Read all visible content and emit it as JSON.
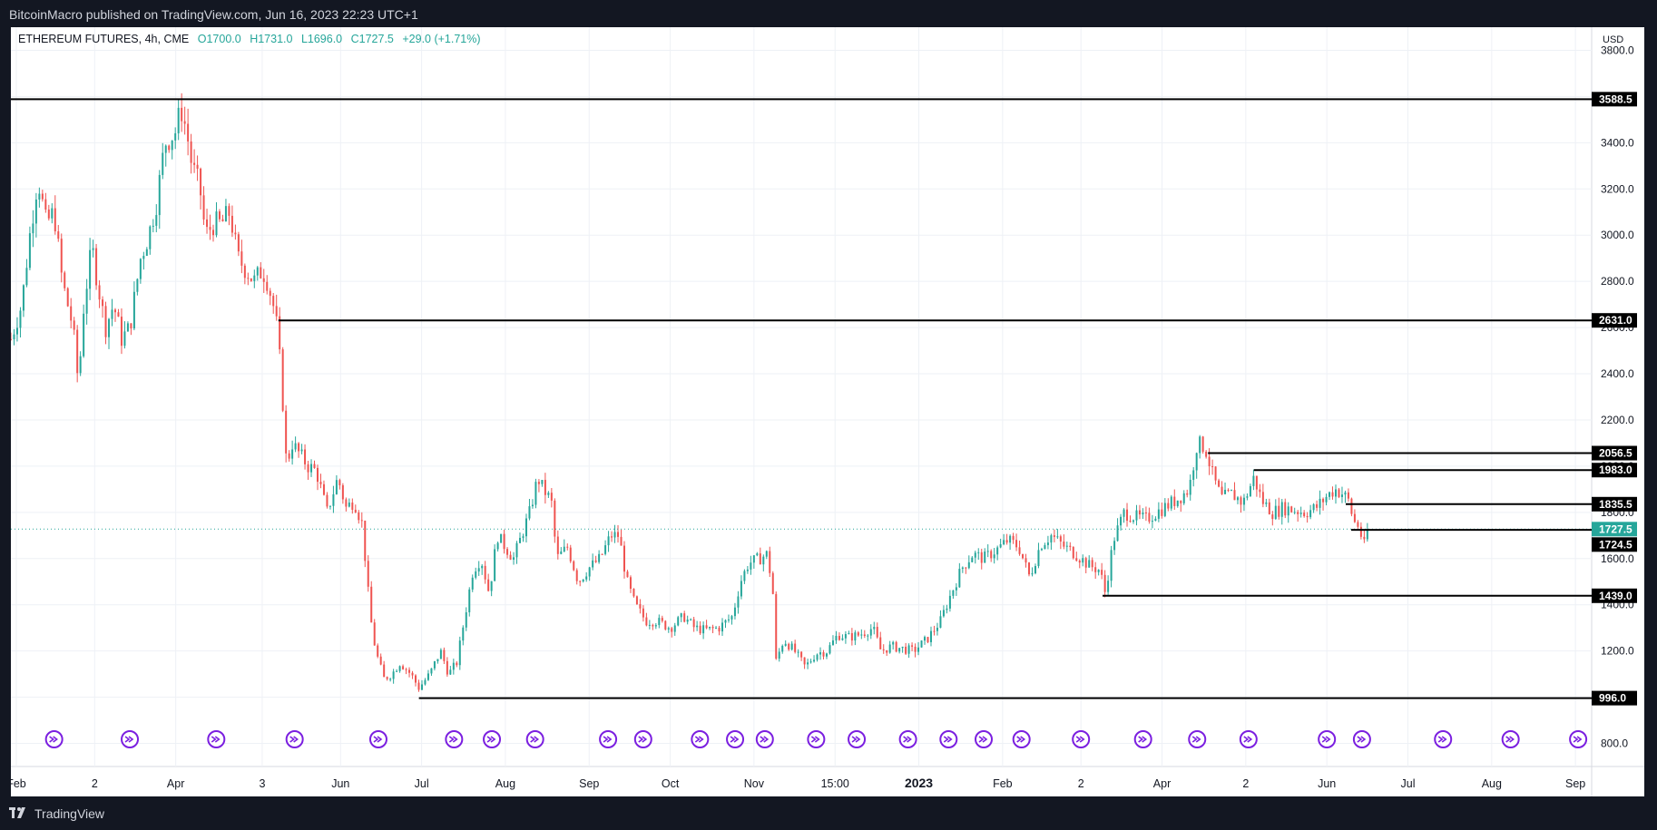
{
  "header": {
    "publisher_text": "BitcoinMacro published on TradingView.com, Jun 16, 2023 22:23 UTC+1"
  },
  "legend": {
    "symbol": "ETHEREUM FUTURES",
    "interval": "4h",
    "exchange": "CME",
    "open": "O1700.0",
    "high": "H1731.0",
    "low": "L1696.0",
    "close": "C1727.5",
    "change": "+29.0 (+1.71%)"
  },
  "footer": {
    "brand": "TradingView"
  },
  "colors": {
    "background": "#131722",
    "pane": "#ffffff",
    "grid": "#eef1f6",
    "up": "#26a69a",
    "down": "#ef5350",
    "level_line": "#000000",
    "last_price": "#26a69a",
    "event_icon": "#7b1fe0"
  },
  "chart_data": {
    "type": "candlestick",
    "title": "ETHEREUM FUTURES, 4h, CME",
    "currency_label": "USD",
    "ylim": [
      700,
      3900
    ],
    "y_ticks": [
      800,
      1000,
      1200,
      1400,
      1600,
      1800,
      2000,
      2200,
      2400,
      2600,
      2800,
      3000,
      3200,
      3400,
      3600,
      3800
    ],
    "y_tick_labels": [
      "800.0",
      "1000.0",
      "1200.0",
      "1400.0",
      "1600.0",
      "1800.0",
      "2000.0",
      "2200.0",
      "2400.0",
      "2600.0",
      "2800.0",
      "3000.0",
      "3200.0",
      "3400.0",
      "3600.0",
      "3800.0"
    ],
    "x_labels": [
      {
        "label": "Feb",
        "date": "2022-02-01"
      },
      {
        "label": "2",
        "date": "2022-03-02"
      },
      {
        "label": "Apr",
        "date": "2022-04-01"
      },
      {
        "label": "3",
        "date": "2022-05-03"
      },
      {
        "label": "Jun",
        "date": "2022-06-01"
      },
      {
        "label": "Jul",
        "date": "2022-07-01"
      },
      {
        "label": "Aug",
        "date": "2022-08-01"
      },
      {
        "label": "Sep",
        "date": "2022-09-01"
      },
      {
        "label": "Oct",
        "date": "2022-10-01"
      },
      {
        "label": "Nov",
        "date": "2022-11-01"
      },
      {
        "label": "15:00",
        "date": "2022-12-01"
      },
      {
        "label": "2023",
        "date": "2023-01-01"
      },
      {
        "label": "Feb",
        "date": "2023-02-01"
      },
      {
        "label": "2",
        "date": "2023-03-02"
      },
      {
        "label": "Apr",
        "date": "2023-04-01"
      },
      {
        "label": "2",
        "date": "2023-05-02"
      },
      {
        "label": "Jun",
        "date": "2023-06-01"
      },
      {
        "label": "Jul",
        "date": "2023-07-01"
      },
      {
        "label": "Aug",
        "date": "2023-08-01"
      },
      {
        "label": "Sep",
        "date": "2023-09-01"
      }
    ],
    "x_range": [
      "2022-01-30",
      "2023-09-07"
    ],
    "last_price": {
      "value": 1727.5,
      "label": "1727.5"
    },
    "horizontal_levels": [
      {
        "value": 3588.5,
        "label": "3588.5",
        "from_date": "2022-01-30"
      },
      {
        "value": 2631.0,
        "label": "2631.0",
        "from_date": "2022-05-09"
      },
      {
        "value": 2056.5,
        "label": "2056.5",
        "from_date": "2023-04-18"
      },
      {
        "value": 1983.0,
        "label": "1983.0",
        "from_date": "2023-05-05"
      },
      {
        "value": 1835.5,
        "label": "1835.5",
        "from_date": "2023-06-08"
      },
      {
        "value": 1724.5,
        "label": "1724.5",
        "from_date": "2023-06-10"
      },
      {
        "value": 1439.0,
        "label": "1439.0",
        "from_date": "2023-03-10"
      },
      {
        "value": 996.0,
        "label": "996.0",
        "from_date": "2022-06-30"
      }
    ],
    "price_path": [
      [
        "2022-01-30",
        2550
      ],
      [
        "2022-02-03",
        2700
      ],
      [
        "2022-02-06",
        3000
      ],
      [
        "2022-02-09",
        3250
      ],
      [
        "2022-02-12",
        3050
      ],
      [
        "2022-02-15",
        3100
      ],
      [
        "2022-02-18",
        2800
      ],
      [
        "2022-02-22",
        2600
      ],
      [
        "2022-02-24",
        2350
      ],
      [
        "2022-02-26",
        2700
      ],
      [
        "2022-03-01",
        2950
      ],
      [
        "2022-03-03",
        2800
      ],
      [
        "2022-03-06",
        2600
      ],
      [
        "2022-03-09",
        2700
      ],
      [
        "2022-03-12",
        2550
      ],
      [
        "2022-03-15",
        2600
      ],
      [
        "2022-03-19",
        2900
      ],
      [
        "2022-03-22",
        3000
      ],
      [
        "2022-03-25",
        3150
      ],
      [
        "2022-03-28",
        3400
      ],
      [
        "2022-04-01",
        3450
      ],
      [
        "2022-04-03",
        3550
      ],
      [
        "2022-04-05",
        3450
      ],
      [
        "2022-04-07",
        3300
      ],
      [
        "2022-04-10",
        3200
      ],
      [
        "2022-04-12",
        3000
      ],
      [
        "2022-04-15",
        3050
      ],
      [
        "2022-04-18",
        3050
      ],
      [
        "2022-04-21",
        3100
      ],
      [
        "2022-04-24",
        2900
      ],
      [
        "2022-04-27",
        2850
      ],
      [
        "2022-04-30",
        2800
      ],
      [
        "2022-05-03",
        2850
      ],
      [
        "2022-05-05",
        2800
      ],
      [
        "2022-05-08",
        2650
      ],
      [
        "2022-05-10",
        2400
      ],
      [
        "2022-05-12",
        2000
      ],
      [
        "2022-05-14",
        2100
      ],
      [
        "2022-05-17",
        2050
      ],
      [
        "2022-05-20",
        2000
      ],
      [
        "2022-05-23",
        1980
      ],
      [
        "2022-05-27",
        1800
      ],
      [
        "2022-05-31",
        1950
      ],
      [
        "2022-06-03",
        1820
      ],
      [
        "2022-06-06",
        1850
      ],
      [
        "2022-06-09",
        1750
      ],
      [
        "2022-06-12",
        1350
      ],
      [
        "2022-06-14",
        1200
      ],
      [
        "2022-06-17",
        1080
      ],
      [
        "2022-06-20",
        1100
      ],
      [
        "2022-06-23",
        1150
      ],
      [
        "2022-06-27",
        1100
      ],
      [
        "2022-06-30",
        1040
      ],
      [
        "2022-07-04",
        1100
      ],
      [
        "2022-07-08",
        1200
      ],
      [
        "2022-07-11",
        1100
      ],
      [
        "2022-07-14",
        1150
      ],
      [
        "2022-07-17",
        1350
      ],
      [
        "2022-07-20",
        1550
      ],
      [
        "2022-07-23",
        1600
      ],
      [
        "2022-07-26",
        1450
      ],
      [
        "2022-07-29",
        1700
      ],
      [
        "2022-08-01",
        1650
      ],
      [
        "2022-08-04",
        1600
      ],
      [
        "2022-08-07",
        1700
      ],
      [
        "2022-08-10",
        1800
      ],
      [
        "2022-08-13",
        1950
      ],
      [
        "2022-08-15",
        1900
      ],
      [
        "2022-08-18",
        1850
      ],
      [
        "2022-08-20",
        1600
      ],
      [
        "2022-08-24",
        1650
      ],
      [
        "2022-08-28",
        1500
      ],
      [
        "2022-09-01",
        1560
      ],
      [
        "2022-09-05",
        1600
      ],
      [
        "2022-09-09",
        1700
      ],
      [
        "2022-09-12",
        1700
      ],
      [
        "2022-09-15",
        1500
      ],
      [
        "2022-09-18",
        1400
      ],
      [
        "2022-09-22",
        1330
      ],
      [
        "2022-09-26",
        1330
      ],
      [
        "2022-10-01",
        1300
      ],
      [
        "2022-10-06",
        1350
      ],
      [
        "2022-10-10",
        1300
      ],
      [
        "2022-10-14",
        1290
      ],
      [
        "2022-10-19",
        1300
      ],
      [
        "2022-10-24",
        1350
      ],
      [
        "2022-10-27",
        1500
      ],
      [
        "2022-10-30",
        1580
      ],
      [
        "2022-11-03",
        1600
      ],
      [
        "2022-11-06",
        1620
      ],
      [
        "2022-11-08",
        1450
      ],
      [
        "2022-11-09",
        1150
      ],
      [
        "2022-11-12",
        1250
      ],
      [
        "2022-11-16",
        1200
      ],
      [
        "2022-11-20",
        1130
      ],
      [
        "2022-11-24",
        1190
      ],
      [
        "2022-11-28",
        1200
      ],
      [
        "2022-12-02",
        1270
      ],
      [
        "2022-12-06",
        1260
      ],
      [
        "2022-12-10",
        1270
      ],
      [
        "2022-12-15",
        1300
      ],
      [
        "2022-12-18",
        1200
      ],
      [
        "2022-12-22",
        1220
      ],
      [
        "2022-12-26",
        1210
      ],
      [
        "2022-12-30",
        1200
      ],
      [
        "2023-01-04",
        1250
      ],
      [
        "2023-01-09",
        1330
      ],
      [
        "2023-01-13",
        1450
      ],
      [
        "2023-01-17",
        1560
      ],
      [
        "2023-01-21",
        1620
      ],
      [
        "2023-01-25",
        1600
      ],
      [
        "2023-01-30",
        1640
      ],
      [
        "2023-02-03",
        1680
      ],
      [
        "2023-02-07",
        1650
      ],
      [
        "2023-02-11",
        1520
      ],
      [
        "2023-02-15",
        1660
      ],
      [
        "2023-02-19",
        1700
      ],
      [
        "2023-02-24",
        1650
      ],
      [
        "2023-02-28",
        1620
      ],
      [
        "2023-03-05",
        1570
      ],
      [
        "2023-03-09",
        1550
      ],
      [
        "2023-03-11",
        1450
      ],
      [
        "2023-03-14",
        1680
      ],
      [
        "2023-03-18",
        1800
      ],
      [
        "2023-03-22",
        1780
      ],
      [
        "2023-03-26",
        1770
      ],
      [
        "2023-03-30",
        1800
      ],
      [
        "2023-04-03",
        1830
      ],
      [
        "2023-04-07",
        1860
      ],
      [
        "2023-04-11",
        1900
      ],
      [
        "2023-04-14",
        2100
      ],
      [
        "2023-04-17",
        2080
      ],
      [
        "2023-04-20",
        1950
      ],
      [
        "2023-04-23",
        1860
      ],
      [
        "2023-04-27",
        1880
      ],
      [
        "2023-05-01",
        1840
      ],
      [
        "2023-05-05",
        1950
      ],
      [
        "2023-05-08",
        1850
      ],
      [
        "2023-05-12",
        1800
      ],
      [
        "2023-05-16",
        1820
      ],
      [
        "2023-05-20",
        1810
      ],
      [
        "2023-05-24",
        1800
      ],
      [
        "2023-05-28",
        1820
      ],
      [
        "2023-06-01",
        1870
      ],
      [
        "2023-06-04",
        1900
      ],
      [
        "2023-06-07",
        1880
      ],
      [
        "2023-06-09",
        1850
      ],
      [
        "2023-06-11",
        1760
      ],
      [
        "2023-06-13",
        1740
      ],
      [
        "2023-06-14",
        1680
      ],
      [
        "2023-06-15",
        1650
      ],
      [
        "2023-06-16",
        1727.5
      ]
    ],
    "event_marker_dates": [
      "2022-02-15",
      "2022-03-15",
      "2022-04-16",
      "2022-05-15",
      "2022-06-15",
      "2022-07-13",
      "2022-07-27",
      "2022-08-12",
      "2022-09-08",
      "2022-09-21",
      "2022-10-12",
      "2022-10-25",
      "2022-11-05",
      "2022-11-24",
      "2022-12-09",
      "2022-12-28",
      "2023-01-12",
      "2023-01-25",
      "2023-02-08",
      "2023-03-02",
      "2023-03-25",
      "2023-04-14",
      "2023-05-03",
      "2023-06-01",
      "2023-06-14",
      "2023-07-14",
      "2023-08-08",
      "2023-09-02"
    ]
  }
}
